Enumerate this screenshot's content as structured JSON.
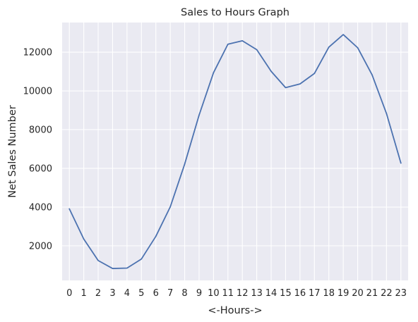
{
  "chart_data": {
    "type": "line",
    "title": "Sales to Hours Graph",
    "xlabel": "<-Hours->",
    "ylabel": "Net Sales Number",
    "x": [
      "0",
      "1",
      "2",
      "3",
      "4",
      "5",
      "6",
      "7",
      "8",
      "9",
      "10",
      "11",
      "12",
      "13",
      "14",
      "15",
      "16",
      "17",
      "18",
      "19",
      "20",
      "21",
      "22",
      "23"
    ],
    "series": [
      {
        "values": [
          3910,
          2350,
          1240,
          830,
          850,
          1320,
          2490,
          4010,
          6220,
          8750,
          10940,
          12410,
          12590,
          12130,
          11010,
          10170,
          10360,
          10900,
          12260,
          12910,
          12230,
          10830,
          8830,
          6270
        ]
      }
    ],
    "yticks": [
      2000,
      4000,
      6000,
      8000,
      10000,
      12000
    ],
    "ylim": [
      213,
      13530
    ],
    "grid": true,
    "line_color": "#4c72b0",
    "plot_background": "#eaeaf2",
    "grid_color": "#ffffff"
  }
}
